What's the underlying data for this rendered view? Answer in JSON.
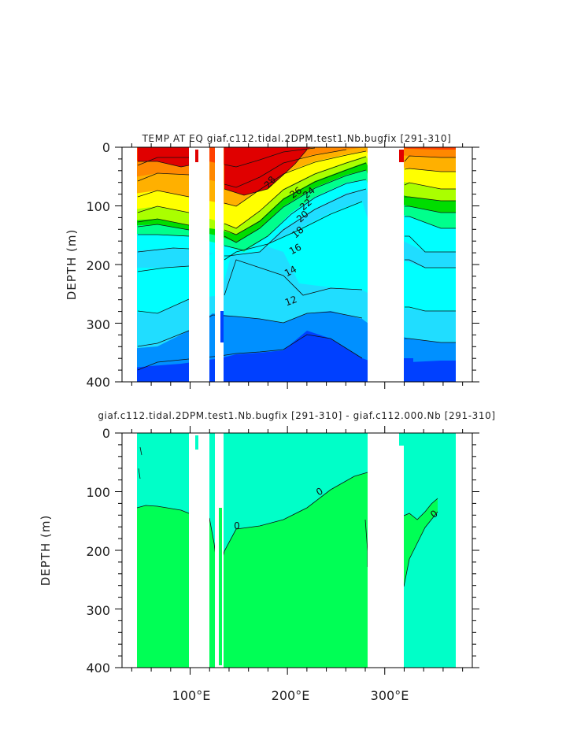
{
  "chart_data": [
    {
      "type": "heatmap",
      "title": "TEMP AT EQ giaf.c112.tidal.2DPM.test1.Nb.bugfix [291-310]",
      "ylabel": "DEPTH (m)",
      "xlabel": "",
      "xlim": [
        30,
        390
      ],
      "ylim": [
        400,
        0
      ],
      "y_ticks": [
        0,
        100,
        200,
        300,
        400
      ],
      "y_tick_labels": [
        "0",
        "100",
        "200",
        "300",
        "400"
      ],
      "x_ticks": [
        100,
        200,
        300
      ],
      "x_tick_labels": [
        "",
        "",
        ""
      ],
      "variable": "temperature",
      "levels": [
        6,
        8,
        10,
        12,
        14,
        16,
        18,
        20,
        22,
        24,
        26,
        28
      ],
      "contour_labels": [
        {
          "text": "28",
          "x": 170,
          "y": 55
        },
        {
          "text": "26",
          "x": 194,
          "y": 76
        },
        {
          "text": "24",
          "x": 204,
          "y": 86
        },
        {
          "text": "22",
          "x": 202,
          "y": 106
        },
        {
          "text": "20",
          "x": 197,
          "y": 120
        },
        {
          "text": "18",
          "x": 191,
          "y": 140
        },
        {
          "text": "16",
          "x": 187,
          "y": 175
        },
        {
          "text": "14",
          "x": 183,
          "y": 210
        },
        {
          "text": "12",
          "x": 183,
          "y": 265
        }
      ],
      "mask_x_ranges": [
        [
          30,
          44
        ],
        [
          97,
          117
        ],
        [
          123,
          130
        ],
        [
          277,
          314
        ],
        [
          368,
          390
        ]
      ],
      "colors": [
        "#0040ff",
        "#0090ff",
        "#20ddff",
        "#00ffff",
        "#00ff8c",
        "#00dd00",
        "#aaff00",
        "#ffff00",
        "#ffb000",
        "#ff8800",
        "#ff4000",
        "#e00000"
      ]
    },
    {
      "type": "heatmap",
      "title": "giaf.c112.tidal.2DPM.test1.Nb.bugfix [291-310] - giaf.c112.000.Nb [291-310]",
      "ylabel": "DEPTH (m)",
      "xlabel": "",
      "xlim": [
        30,
        390
      ],
      "ylim": [
        400,
        0
      ],
      "y_ticks": [
        0,
        100,
        200,
        300,
        400
      ],
      "y_tick_labels": [
        "0",
        "100",
        "200",
        "300",
        "400"
      ],
      "x_ticks": [
        100,
        200,
        300
      ],
      "x_tick_labels": [
        "100°E",
        "200°E",
        "300°E"
      ],
      "variable": "temperature difference",
      "levels": [
        0
      ],
      "contour_labels": [
        {
          "text": "0",
          "x": 270,
          "y": 105
        },
        {
          "text": "0",
          "x": 190,
          "y": 163
        },
        {
          "text": "0",
          "x": 350,
          "y": 142
        }
      ],
      "mask_x_ranges": [
        [
          30,
          44
        ],
        [
          97,
          117
        ],
        [
          123,
          130
        ],
        [
          277,
          314
        ],
        [
          368,
          390
        ]
      ],
      "colors": [
        "#00ff55",
        "#00ffc8"
      ]
    }
  ]
}
